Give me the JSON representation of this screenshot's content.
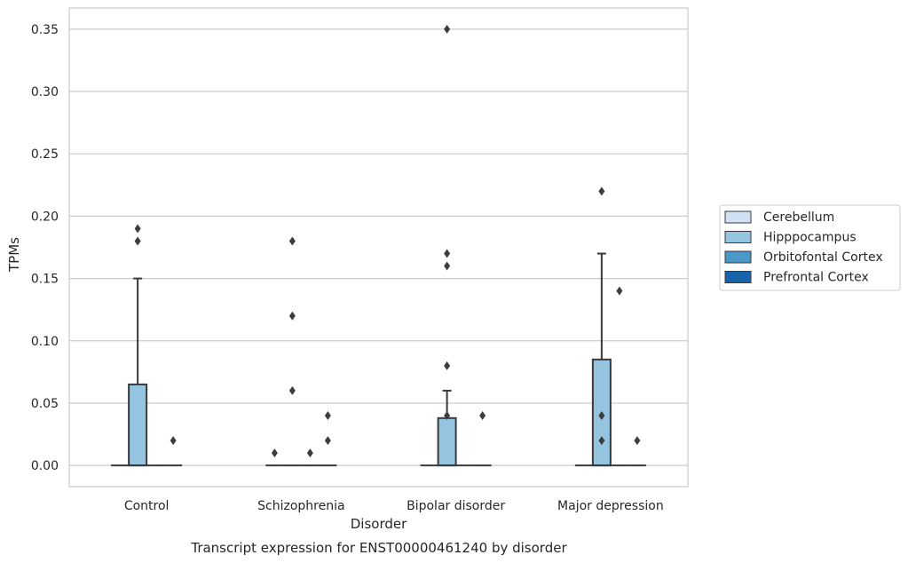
{
  "chart_data": {
    "type": "box",
    "title": "Transcript expression for ENST00000461240 by disorder",
    "xlabel": "Disorder",
    "ylabel": "TPMs",
    "categories": [
      "Control",
      "Schizophrenia",
      "Bipolar disorder",
      "Major depression"
    ],
    "ylim": [
      -0.017,
      0.367
    ],
    "yticks": [
      "0.00",
      "0.05",
      "0.10",
      "0.15",
      "0.20",
      "0.25",
      "0.30",
      "0.35"
    ],
    "grid": "horizontal",
    "legend_position": "right",
    "series": [
      {
        "name": "Cerebellum",
        "color": "#d0e1f2",
        "boxes": [
          {
            "q1": 0,
            "median": 0,
            "q3": 0,
            "whisker_low": 0,
            "whisker_high": 0,
            "outliers": []
          },
          {
            "q1": 0,
            "median": 0,
            "q3": 0,
            "whisker_low": 0,
            "whisker_high": 0,
            "outliers": [
              0.01
            ]
          },
          {
            "q1": 0,
            "median": 0,
            "q3": 0,
            "whisker_low": 0,
            "whisker_high": 0,
            "outliers": []
          },
          {
            "q1": 0,
            "median": 0,
            "q3": 0,
            "whisker_low": 0,
            "whisker_high": 0,
            "outliers": []
          }
        ]
      },
      {
        "name": "Hipppocampus",
        "color": "#94c4df",
        "boxes": [
          {
            "q1": 0,
            "median": 0,
            "q3": 0.065,
            "whisker_low": 0,
            "whisker_high": 0.15,
            "outliers": [
              0.18,
              0.19
            ]
          },
          {
            "q1": 0,
            "median": 0,
            "q3": 0,
            "whisker_low": 0,
            "whisker_high": 0,
            "outliers": [
              0.06,
              0.12,
              0.18
            ]
          },
          {
            "q1": 0,
            "median": 0,
            "q3": 0.038,
            "whisker_low": 0,
            "whisker_high": 0.06,
            "outliers": [
              0.04,
              0.08,
              0.16,
              0.17,
              0.35
            ]
          },
          {
            "q1": 0,
            "median": 0,
            "q3": 0.085,
            "whisker_low": 0,
            "whisker_high": 0.17,
            "outliers": [
              0.02,
              0.04,
              0.22
            ]
          }
        ]
      },
      {
        "name": "Orbitofontal Cortex",
        "color": "#4a98c9",
        "boxes": [
          {
            "q1": 0,
            "median": 0,
            "q3": 0,
            "whisker_low": 0,
            "whisker_high": 0,
            "outliers": []
          },
          {
            "q1": 0,
            "median": 0,
            "q3": 0,
            "whisker_low": 0,
            "whisker_high": 0,
            "outliers": [
              0.01
            ]
          },
          {
            "q1": 0,
            "median": 0,
            "q3": 0,
            "whisker_low": 0,
            "whisker_high": 0,
            "outliers": []
          },
          {
            "q1": 0,
            "median": 0,
            "q3": 0,
            "whisker_low": 0,
            "whisker_high": 0,
            "outliers": [
              0.14
            ]
          }
        ]
      },
      {
        "name": "Prefrontal Cortex",
        "color": "#1764ab",
        "boxes": [
          {
            "q1": 0,
            "median": 0,
            "q3": 0,
            "whisker_low": 0,
            "whisker_high": 0,
            "outliers": [
              0.02
            ]
          },
          {
            "q1": 0,
            "median": 0,
            "q3": 0,
            "whisker_low": 0,
            "whisker_high": 0,
            "outliers": [
              0.02,
              0.04
            ]
          },
          {
            "q1": 0,
            "median": 0,
            "q3": 0,
            "whisker_low": 0,
            "whisker_high": 0,
            "outliers": [
              0.04
            ]
          },
          {
            "q1": 0,
            "median": 0,
            "q3": 0,
            "whisker_low": 0,
            "whisker_high": 0,
            "outliers": [
              0.02
            ]
          }
        ]
      }
    ]
  }
}
